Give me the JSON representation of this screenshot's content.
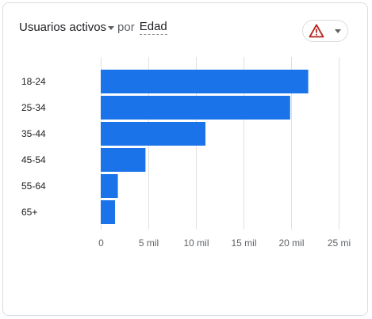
{
  "header": {
    "metric_label": "Usuarios activos",
    "por_label": "por",
    "dimension_label": "Edad"
  },
  "insight_button": {
    "icon": "warning-icon",
    "icon_color": "#b3261e"
  },
  "colors": {
    "bar": "#1a73e8",
    "grid": "#e0e0e0"
  },
  "chart_data": {
    "type": "bar",
    "orientation": "horizontal",
    "categories": [
      "18-24",
      "25-34",
      "35-44",
      "45-54",
      "55-64",
      "65+"
    ],
    "values": [
      21800,
      19900,
      11000,
      4700,
      1800,
      1500
    ],
    "xlim": [
      0,
      25000
    ],
    "xticks": [
      0,
      5000,
      10000,
      15000,
      20000,
      25000
    ],
    "xtick_labels": [
      "0",
      "5 mil",
      "10 mil",
      "15 mil",
      "20 mil",
      "25 mi"
    ],
    "grid": true
  }
}
